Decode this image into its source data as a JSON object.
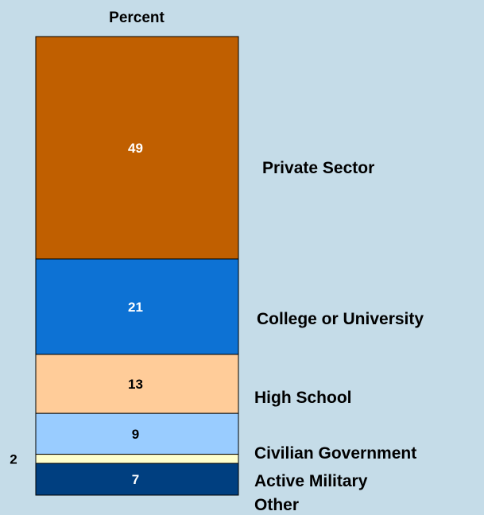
{
  "chart_data": {
    "type": "bar",
    "subtype": "stacked-100-percent",
    "title": "Percent",
    "ylim": [
      0,
      101
    ],
    "categories": [
      "Private Sector",
      "College or University",
      "High School",
      "Civilian Government",
      "Active Military",
      "Other"
    ],
    "values": [
      49,
      21,
      13,
      9,
      2,
      7
    ],
    "data_labels": [
      "49",
      "21",
      "13",
      "9",
      "2",
      "7"
    ],
    "colors": [
      "#c05f00",
      "#0d72d4",
      "#ffcc99",
      "#99ccff",
      "#ffffcc",
      "#003f80"
    ],
    "label_colors": [
      "#ffffff",
      "#ffffff",
      "#000000",
      "#000000",
      "#000000",
      "#ffffff"
    ],
    "stack_order": "top-to-bottom",
    "legend": "labels-right-of-bar",
    "grid": false
  }
}
